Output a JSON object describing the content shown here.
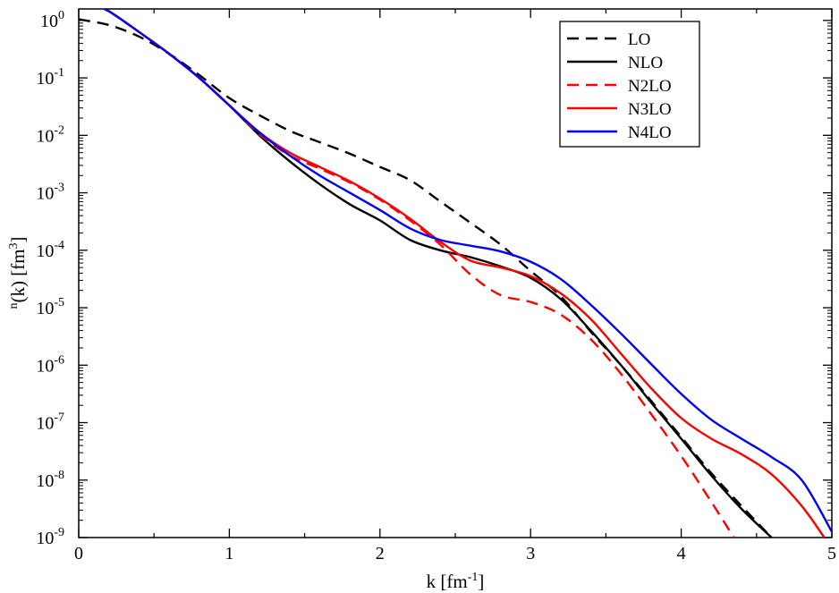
{
  "chart_data": {
    "type": "line",
    "title": "",
    "xlabel": "k [fm",
    "xlabel_sup": "-1",
    "xlabel_suffix": "]",
    "ylabel_sup_pre": "n",
    "ylabel": "(k) [fm",
    "ylabel_sup": "3",
    "ylabel_suffix": "]",
    "xlim": [
      0,
      5
    ],
    "ylim_exp": [
      -9,
      0.5
    ],
    "y_scale": "log",
    "x_ticks": [
      "0",
      "1",
      "2",
      "3",
      "4",
      "5"
    ],
    "y_tick_base": "10",
    "y_tick_exponents": [
      "0",
      "-1",
      "-2",
      "-3",
      "-4",
      "-5",
      "-6",
      "-7",
      "-8",
      "-9"
    ],
    "legend_position": "top-right",
    "grid": false,
    "series": [
      {
        "name": "LO",
        "color": "#000000",
        "dash": "dashed",
        "x": [
          0,
          0.2,
          0.4,
          0.6,
          0.8,
          1.0,
          1.2,
          1.4,
          1.6,
          1.8,
          2.0,
          2.2,
          2.4,
          2.6,
          2.8,
          3.0,
          3.2,
          3.4,
          3.6,
          3.8,
          4.0,
          4.2,
          4.4,
          4.6
        ],
        "log10y": [
          0.02,
          -0.08,
          -0.28,
          -0.58,
          -0.95,
          -1.35,
          -1.65,
          -1.92,
          -2.12,
          -2.32,
          -2.55,
          -2.78,
          -3.15,
          -3.52,
          -3.9,
          -4.36,
          -4.8,
          -5.42,
          -6.0,
          -6.62,
          -7.25,
          -7.88,
          -8.45,
          -9.0
        ]
      },
      {
        "name": "NLO",
        "color": "#000000",
        "dash": "solid",
        "x": [
          0,
          0.1,
          0.2,
          0.4,
          0.6,
          0.8,
          1.0,
          1.2,
          1.4,
          1.6,
          1.8,
          2.0,
          2.2,
          2.4,
          2.6,
          2.8,
          3.0,
          3.2,
          3.4,
          3.6,
          3.8,
          4.0,
          4.2,
          4.4,
          4.6
        ],
        "log10y": [
          0.28,
          0.25,
          0.16,
          -0.2,
          -0.58,
          -1.0,
          -1.48,
          -2.0,
          -2.45,
          -2.85,
          -3.2,
          -3.48,
          -3.82,
          -4.0,
          -4.12,
          -4.28,
          -4.48,
          -4.85,
          -5.4,
          -6.0,
          -6.65,
          -7.28,
          -7.92,
          -8.5,
          -9.0
        ]
      },
      {
        "name": "N2LO",
        "color": "#ff0000",
        "dash": "dashed",
        "x": [
          0,
          0.1,
          0.2,
          0.4,
          0.6,
          0.8,
          1.0,
          1.2,
          1.4,
          1.6,
          1.8,
          2.0,
          2.2,
          2.4,
          2.6,
          2.8,
          3.0,
          3.2,
          3.4,
          3.6,
          3.8,
          4.0,
          4.2,
          4.35
        ],
        "log10y": [
          0.28,
          0.25,
          0.16,
          -0.2,
          -0.58,
          -1.0,
          -1.48,
          -1.98,
          -2.35,
          -2.58,
          -2.82,
          -3.12,
          -3.48,
          -3.9,
          -4.42,
          -4.78,
          -4.9,
          -5.12,
          -5.55,
          -6.15,
          -6.85,
          -7.58,
          -8.38,
          -9.0
        ]
      },
      {
        "name": "N3LO",
        "color": "#ff0000",
        "dash": "solid",
        "x": [
          0,
          0.1,
          0.2,
          0.4,
          0.6,
          0.8,
          1.0,
          1.2,
          1.4,
          1.6,
          1.8,
          2.0,
          2.2,
          2.4,
          2.6,
          2.8,
          3.0,
          3.2,
          3.4,
          3.6,
          3.8,
          4.0,
          4.2,
          4.4,
          4.6,
          4.8,
          4.95
        ],
        "log10y": [
          0.28,
          0.25,
          0.16,
          -0.2,
          -0.58,
          -1.0,
          -1.48,
          -1.95,
          -2.3,
          -2.55,
          -2.8,
          -3.1,
          -3.45,
          -3.85,
          -4.18,
          -4.3,
          -4.45,
          -4.75,
          -5.2,
          -5.8,
          -6.4,
          -6.92,
          -7.28,
          -7.55,
          -7.9,
          -8.45,
          -9.0
        ]
      },
      {
        "name": "N4LO",
        "color": "#0000ff",
        "dash": "solid",
        "x": [
          0,
          0.1,
          0.2,
          0.4,
          0.6,
          0.8,
          1.0,
          1.2,
          1.4,
          1.6,
          1.8,
          2.0,
          2.2,
          2.4,
          2.6,
          2.8,
          3.0,
          3.2,
          3.4,
          3.6,
          3.8,
          4.0,
          4.2,
          4.4,
          4.6,
          4.8,
          5.0
        ],
        "log10y": [
          0.28,
          0.25,
          0.16,
          -0.2,
          -0.58,
          -1.0,
          -1.48,
          -1.95,
          -2.35,
          -2.7,
          -3.0,
          -3.3,
          -3.62,
          -3.82,
          -3.92,
          -4.02,
          -4.2,
          -4.5,
          -4.95,
          -5.45,
          -5.98,
          -6.5,
          -6.95,
          -7.28,
          -7.6,
          -8.0,
          -8.9
        ]
      }
    ]
  }
}
